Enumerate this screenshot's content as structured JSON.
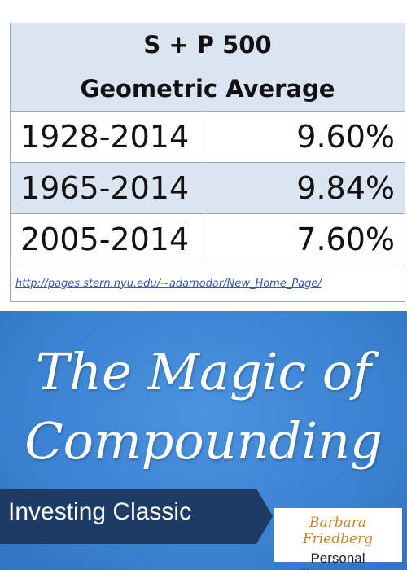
{
  "header": {
    "title": [
      "S + P 500",
      "Geometric Average"
    ]
  },
  "table": {
    "rows": [
      [
        "1928-2014",
        "9.60%"
      ],
      [
        "1965-2014",
        "9.84%"
      ],
      [
        "2005-2014",
        "7.60%"
      ]
    ],
    "source": "http://pages.stern.nyu.edu/~adamodar/New_Home_Page/"
  },
  "headline": [
    "The Magic of",
    "Compounding"
  ],
  "banner": "Investing Classic",
  "logo": [
    "Barbara Friedberg",
    "Personal Finance.com"
  ]
}
